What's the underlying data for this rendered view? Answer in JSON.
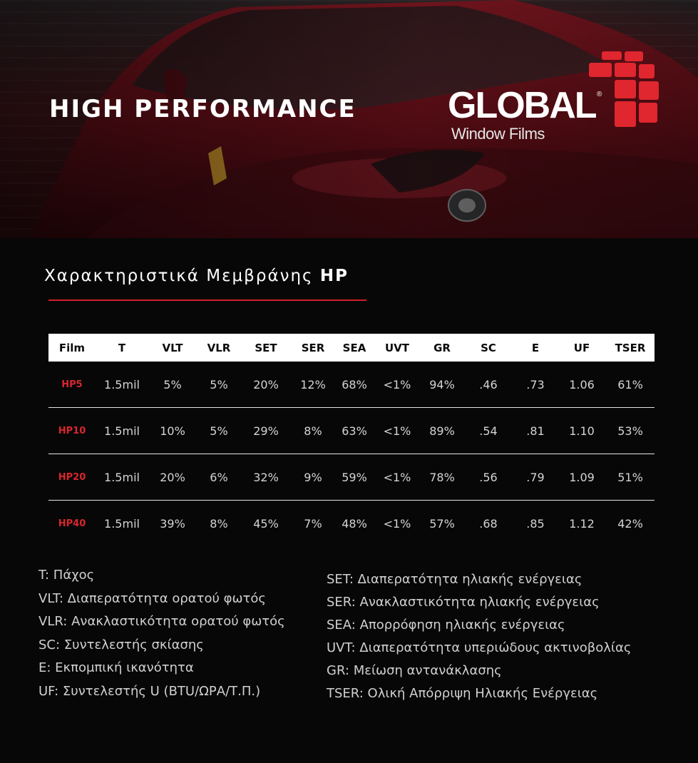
{
  "hero": {
    "title": "HIGH PERFORMANCE",
    "logo": {
      "brand": "GLOBAL",
      "registered": "®",
      "subtitle": "Window Films"
    }
  },
  "section": {
    "title_prefix": "Χαρακτηριστικά Μεμβράνης",
    "title_bold": "HP"
  },
  "colors": {
    "accent": "#d21f29",
    "background": "#070707",
    "header_bg": "#ffffff"
  },
  "table": {
    "headers": [
      "Film",
      "T",
      "VLT",
      "VLR",
      "SET",
      "SER",
      "SEA",
      "UVT",
      "GR",
      "SC",
      "E",
      "UF",
      "TSER"
    ],
    "rows": [
      [
        "HP5",
        "1.5mil",
        "5%",
        "5%",
        "20%",
        "12%",
        "68%",
        "<1%",
        "94%",
        ".46",
        ".73",
        "1.06",
        "61%"
      ],
      [
        "HP10",
        "1.5mil",
        "10%",
        "5%",
        "29%",
        "8%",
        "63%",
        "<1%",
        "89%",
        ".54",
        ".81",
        "1.10",
        "53%"
      ],
      [
        "HP20",
        "1.5mil",
        "20%",
        "6%",
        "32%",
        "9%",
        "59%",
        "<1%",
        "78%",
        ".56",
        ".79",
        "1.09",
        "51%"
      ],
      [
        "HP40",
        "1.5mil",
        "39%",
        "8%",
        "45%",
        "7%",
        "48%",
        "<1%",
        "57%",
        ".68",
        ".85",
        "1.12",
        "42%"
      ]
    ]
  },
  "legend": {
    "left": [
      "T: Πάχος",
      "VLT: Διαπερατότητα ορατού φωτός",
      "VLR: Ανακλαστικότητα ορατού φωτός",
      "SC: Συντελεστής σκίασης",
      "E: Εκπομπική ικανότητα",
      "UF: Συντελεστής U (BTU/ΩΡΑ/Τ.Π.)"
    ],
    "right": [
      "SET: Διαπερατότητα ηλιακής ενέργειας",
      "SER: Ανακλαστικότητα ηλιακής ενέργειας",
      "SEA: Απορρόφηση ηλιακής ενέργειας",
      "UVT: Διαπερατότητα υπεριώδους ακτινοβολίας",
      "GR: Μείωση αντανάκλασης",
      "TSER: Ολική Απόρριψη Ηλιακής Ενέργειας"
    ]
  }
}
